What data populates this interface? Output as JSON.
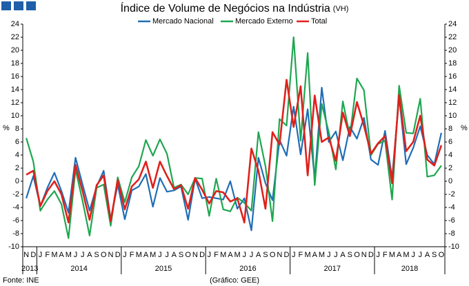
{
  "chart_data": {
    "type": "line",
    "title": "Índice de Volume de Negócios na Indústria",
    "title_suffix": "(VH)",
    "y_label": "%",
    "source": "Fonte: INE",
    "credit": "(Gráfico: GEE)",
    "categories": [
      "N",
      "D",
      "J",
      "F",
      "M",
      "A",
      "M",
      "J",
      "J",
      "A",
      "S",
      "O",
      "N",
      "D",
      "J",
      "F",
      "M",
      "A",
      "M",
      "J",
      "J",
      "A",
      "S",
      "O",
      "N",
      "D",
      "J",
      "F",
      "M",
      "A",
      "M",
      "J",
      "J",
      "A",
      "S",
      "O",
      "N",
      "D",
      "J",
      "F",
      "M",
      "A",
      "M",
      "J",
      "J",
      "A",
      "S",
      "O",
      "N",
      "D",
      "J",
      "F",
      "M",
      "A",
      "M",
      "J",
      "J",
      "A",
      "S",
      "O"
    ],
    "years": [
      "2013",
      "2014",
      "2015",
      "2016",
      "2017",
      "2018"
    ],
    "ylim": [
      -10,
      24
    ],
    "yticks": [
      -10,
      -8,
      -6,
      -4,
      -2,
      0,
      2,
      4,
      6,
      8,
      10,
      12,
      14,
      16,
      18,
      20,
      22,
      24
    ],
    "grid": false,
    "series": [
      {
        "name": "Mercado Nacional",
        "color": "#1f6db5",
        "values": [
          -2.6,
          0.8,
          -3.8,
          -1,
          1.3,
          -1.5,
          -4.8,
          3.6,
          -0.5,
          -4.5,
          -0.8,
          1.6,
          -5.8,
          -0.5,
          -5.8,
          -1.4,
          -0.8,
          1.1,
          -3.9,
          0.5,
          -1.6,
          -1.4,
          -0.8,
          -5.9,
          0.4,
          -2.6,
          -2.4,
          -2.6,
          -2.8,
          0,
          -4.2,
          -2.6,
          -7.5,
          3.6,
          -0.3,
          -2.9,
          6.3,
          3.9,
          11.4,
          4.1,
          11,
          0.4,
          14.3,
          6,
          7.6,
          3.2,
          8.3,
          6.5,
          9.7,
          3.3,
          2.5,
          7.7,
          0.5,
          12.9,
          2.6,
          5.1,
          8.4,
          4,
          2.6,
          7.4
        ]
      },
      {
        "name": "Mercado Externo",
        "color": "#1ea650",
        "values": [
          6.6,
          3,
          -4.5,
          -2.8,
          -1.5,
          -3.5,
          -8.7,
          1.8,
          -3,
          -8.3,
          -1,
          -0.5,
          -6.8,
          0.6,
          -3.2,
          0.6,
          2.3,
          6.3,
          3.9,
          6.4,
          4.2,
          -1,
          -0.5,
          -2,
          0.5,
          0.4,
          -5.3,
          0.4,
          -4.3,
          -4.6,
          -2.5,
          -3.3,
          -4.5,
          7.5,
          2.3,
          -6.1,
          9.5,
          8.5,
          22,
          6.2,
          19.6,
          -0.6,
          11.8,
          7.5,
          1.8,
          12.2,
          6.9,
          15.7,
          13.9,
          4,
          5.7,
          6.2,
          -2.8,
          14.6,
          7.4,
          7.3,
          12.6,
          0.7,
          0.9,
          2.4
        ]
      },
      {
        "name": "Total",
        "color": "#e0201b",
        "values": [
          1,
          1.6,
          -3.8,
          -1.5,
          0,
          -2,
          -6.3,
          2.5,
          -1.5,
          -5.9,
          -0.6,
          0.9,
          -6.1,
          0.2,
          -4.3,
          -0.8,
          0.3,
          3,
          -1,
          3,
          0.8,
          -1.2,
          -0.6,
          -4.2,
          0.5,
          -1.3,
          -3.4,
          -1.5,
          -1.7,
          -3.1,
          -2.6,
          -6.3,
          5,
          1.6,
          -4.2,
          7.5,
          5.6,
          15.5,
          8.3,
          14.5,
          0.9,
          13.1,
          6,
          6.7,
          3.1,
          10.5,
          6.9,
          12.1,
          8.5,
          4.2,
          5.8,
          6.9,
          -0.3,
          13.2,
          4.6,
          6,
          10,
          3.3,
          2.4,
          5.5
        ]
      }
    ]
  }
}
